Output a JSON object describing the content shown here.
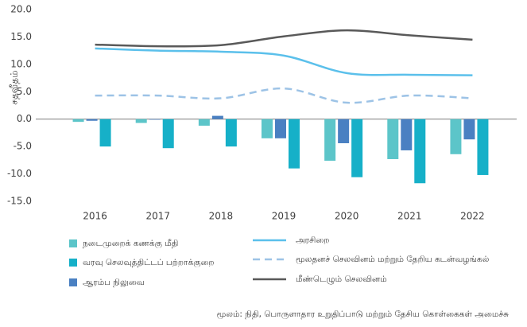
{
  "chart_data": {
    "type": "bar",
    "ylabel": "சதவீதம்",
    "categories": [
      "2016",
      "2017",
      "2018",
      "2019",
      "2020",
      "2021",
      "2022"
    ],
    "series": [
      {
        "name": "நடைமுறைக் கணக்கு மீதி",
        "type": "bar",
        "color": "#5cc5c9",
        "values": [
          -0.5,
          -0.7,
          -1.2,
          -3.5,
          -7.6,
          -7.3,
          -6.4
        ]
      },
      {
        "name": "ஆரம்ப நிலுவை",
        "type": "bar",
        "color": "#4a80c2",
        "values": [
          -0.3,
          -0.1,
          0.6,
          -3.5,
          -4.4,
          -5.7,
          -3.7
        ]
      },
      {
        "name": "வரவு செலவுத்திட்டப் பற்றாக்குறை",
        "type": "bar",
        "color": "#16b0c8",
        "values": [
          -5.0,
          -5.3,
          -5.0,
          -9.0,
          -10.6,
          -11.7,
          -10.2
        ]
      },
      {
        "name": "அரசிறை",
        "type": "line",
        "color": "#5bc0eb",
        "dash": false,
        "values": [
          12.9,
          12.5,
          12.3,
          11.6,
          8.4,
          8.1,
          8.0
        ]
      },
      {
        "name": "மூலதனச் செலவினம் மற்றும் தேறிய கடன்வழங்கல்",
        "type": "line",
        "color": "#9dc3e6",
        "dash": true,
        "values": [
          4.3,
          4.3,
          3.8,
          5.6,
          3.0,
          4.3,
          3.8
        ]
      },
      {
        "name": "மீண்டெழும் செலவினம்",
        "type": "line",
        "color": "#595959",
        "dash": false,
        "values": [
          13.6,
          13.3,
          13.5,
          15.1,
          16.2,
          15.3,
          14.5
        ]
      }
    ],
    "ylim": [
      -15,
      20
    ],
    "yticks": [
      {
        "value": 20,
        "label": "20.0"
      },
      {
        "value": 15,
        "label": "15.0"
      },
      {
        "value": 10,
        "label": "10.0"
      },
      {
        "value": 5,
        "label": "5.0"
      },
      {
        "value": 0,
        "label": "0.0"
      },
      {
        "value": -5,
        "label": "-5.0"
      },
      {
        "value": -10,
        "label": "-10.0"
      },
      {
        "value": -15,
        "label": "-15.0"
      }
    ],
    "grid": false,
    "legend": "bottom",
    "source": "மூலம்: நிதி, பொருளாதார உறுதிப்பாடு மற்றும் தேசிய கொள்கைகள் அமைச்சு"
  }
}
